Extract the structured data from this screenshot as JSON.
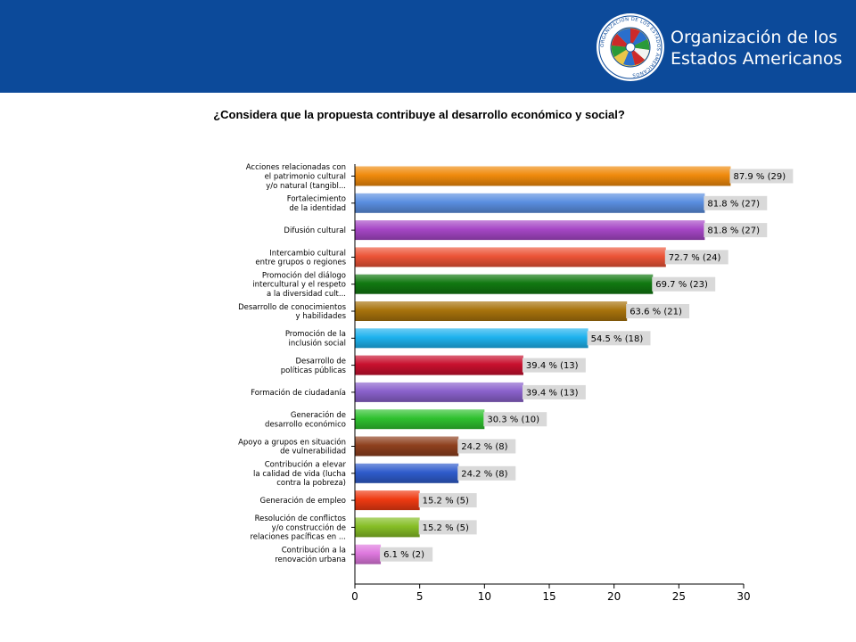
{
  "header": {
    "org_name_line1": "Organización de los",
    "org_name_line2": "Estados Americanos",
    "seal_text": "ORGANIZACION DE LOS ESTADOS AMERICANOS",
    "seal_icon": "oas-seal-icon"
  },
  "colors": {
    "header_bg": "#0c4a9a",
    "label_bg": "#d9d9d9"
  },
  "chart_data": {
    "type": "bar",
    "orientation": "horizontal",
    "title": "¿Considera que la propuesta contribuye al desarrollo económico y social?",
    "xlim": [
      0,
      30
    ],
    "xticks": [
      0,
      5,
      10,
      15,
      20,
      25,
      30
    ],
    "grid": false,
    "categories": [
      [
        "Acciones relacionadas con",
        "el patrimonio cultural",
        "y/o natural (tangibl..."
      ],
      [
        "Fortalecimiento",
        "de la identidad"
      ],
      [
        "Difusión cultural"
      ],
      [
        "Intercambio cultural",
        "entre grupos o regiones"
      ],
      [
        "Promoción del diálogo",
        "intercultural y el respeto",
        "a la diversidad cult..."
      ],
      [
        "Desarrollo de conocimientos",
        "y habilidades"
      ],
      [
        "Promoción de la",
        "inclusión social"
      ],
      [
        "Desarrollo de",
        "políticas públicas"
      ],
      [
        "Formación de ciudadanía"
      ],
      [
        "Generación de",
        "desarrollo económico"
      ],
      [
        "Apoyo a grupos en situación",
        "de vulnerabilidad"
      ],
      [
        "Contribución a elevar",
        "la calidad de vida (lucha",
        "contra la pobreza)"
      ],
      [
        "Generación de empleo"
      ],
      [
        "Resolución de conflictos",
        "y/o construcción de",
        "relaciones pacíficas en ..."
      ],
      [
        "Contribución a la",
        "renovación urbana"
      ]
    ],
    "values": [
      29,
      27,
      27,
      24,
      23,
      21,
      18,
      13,
      13,
      10,
      8,
      8,
      5,
      5,
      2
    ],
    "data_labels": [
      "87.9 % (29)",
      "81.8 % (27)",
      "81.8 % (27)",
      "72.7 % (24)",
      "69.7 % (23)",
      "63.6 % (21)",
      "54.5 % (18)",
      "39.4 % (13)",
      "39.4 % (13)",
      "30.3 % (10)",
      "24.2 % (8)",
      "24.2 % (8)",
      "15.2 % (5)",
      "15.2 % (5)",
      "6.1 % (2)"
    ],
    "bar_colors": [
      "#f08a0c",
      "#5a8ee0",
      "#a647c6",
      "#ec5437",
      "#117811",
      "#a8730c",
      "#1eb2ee",
      "#c8102e",
      "#8a61cc",
      "#2fc12f",
      "#8e401e",
      "#2f5ccc",
      "#ef3a12",
      "#86be26",
      "#de78de"
    ]
  }
}
